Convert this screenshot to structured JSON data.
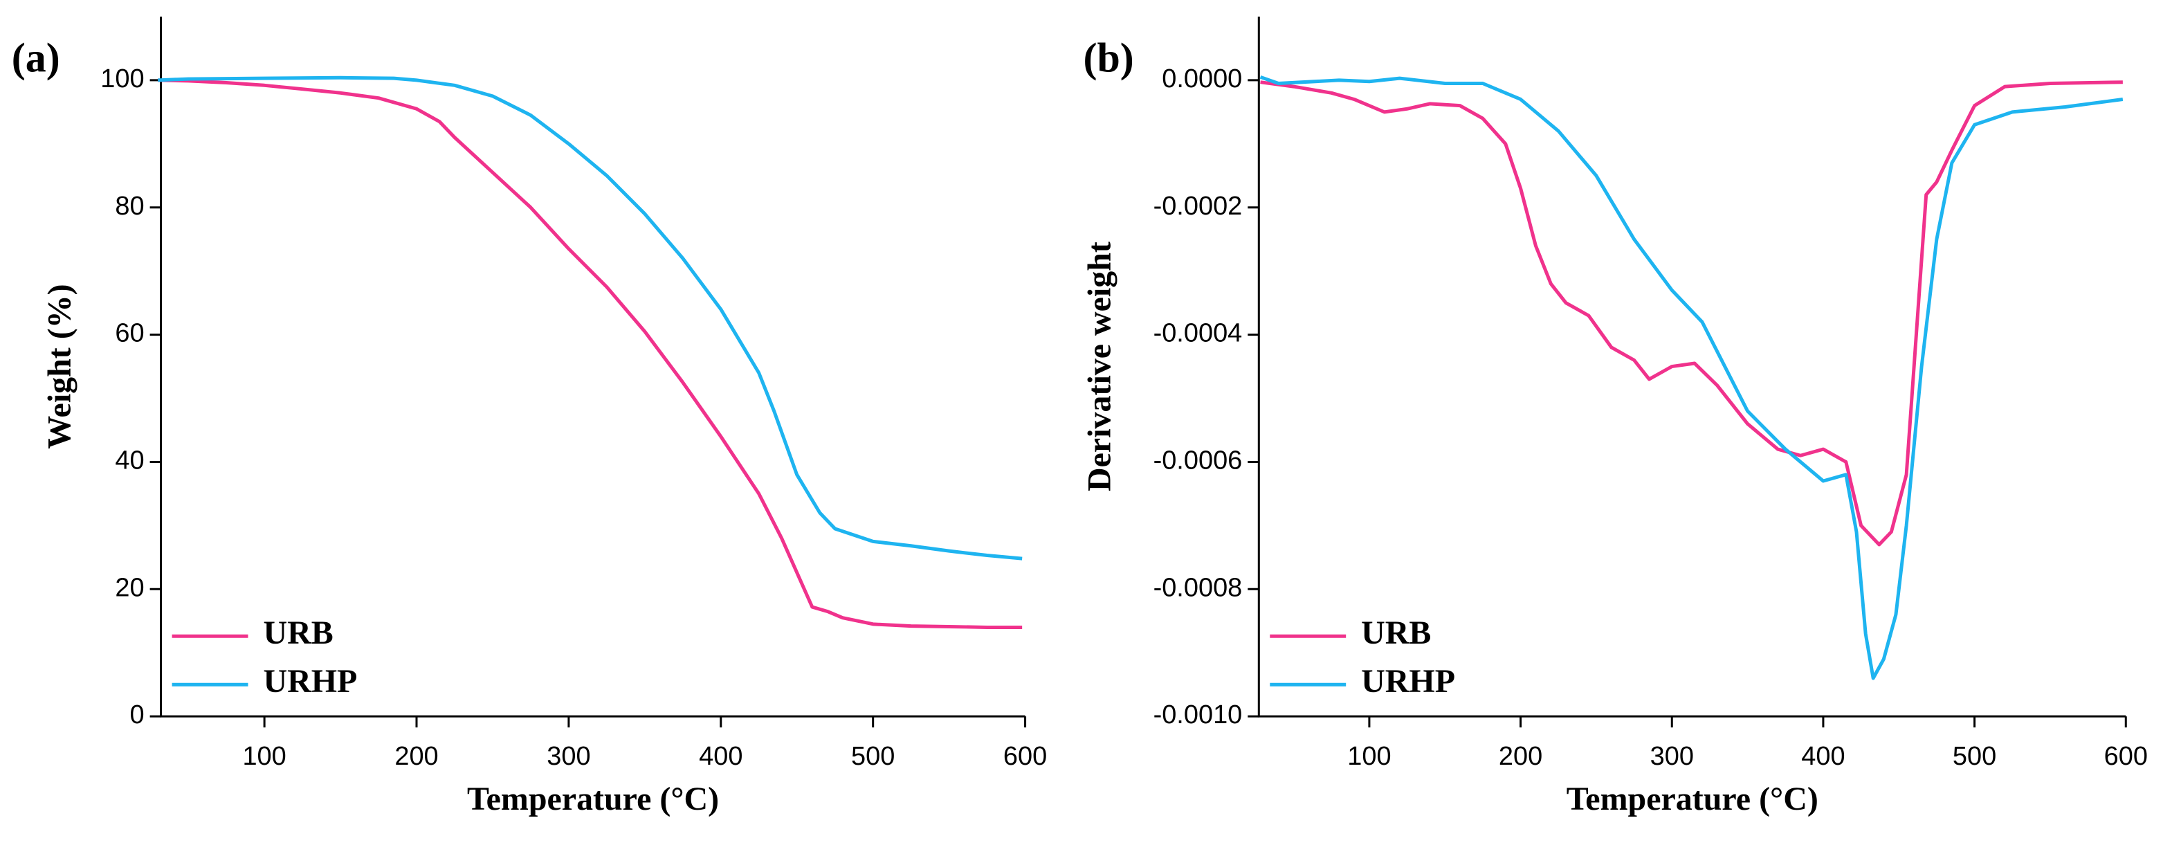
{
  "chart_data": [
    {
      "type": "line",
      "panel": "(a)",
      "xlabel": "Temperature (°C)",
      "ylabel": "Weight (%)",
      "xlim": [
        32,
        600
      ],
      "ylim": [
        0,
        110
      ],
      "xticks": [
        100,
        200,
        300,
        400,
        500,
        600
      ],
      "yticks": [
        0,
        20,
        40,
        60,
        80,
        100
      ],
      "legend": "lower left",
      "series": [
        {
          "name": "URB",
          "color": "#f0328c",
          "x": [
            30,
            50,
            75,
            100,
            125,
            150,
            175,
            200,
            215,
            225,
            250,
            275,
            300,
            325,
            350,
            375,
            400,
            425,
            440,
            460,
            470,
            480,
            500,
            525,
            550,
            575,
            598
          ],
          "values": [
            100,
            99.9,
            99.6,
            99.2,
            98.6,
            98,
            97.2,
            95.5,
            93.5,
            91,
            85.5,
            80,
            73.5,
            67.5,
            60.5,
            52.5,
            44,
            35,
            28,
            17.2,
            16.5,
            15.5,
            14.5,
            14.2,
            14.1,
            14,
            14
          ]
        },
        {
          "name": "URHP",
          "color": "#1eb4f0",
          "x": [
            30,
            50,
            100,
            150,
            185,
            200,
            225,
            250,
            275,
            300,
            325,
            350,
            375,
            400,
            425,
            435,
            450,
            465,
            475,
            500,
            525,
            550,
            575,
            598
          ],
          "values": [
            100,
            100.2,
            100.3,
            100.4,
            100.3,
            100,
            99.2,
            97.5,
            94.5,
            90,
            85,
            79,
            72,
            64,
            54,
            48,
            38,
            32,
            29.5,
            27.5,
            26.8,
            26,
            25.3,
            24.8
          ]
        }
      ]
    },
    {
      "type": "line",
      "panel": "(b)",
      "xlabel": "Temperature (°C)",
      "ylabel": "Derivative weight",
      "xlim": [
        27,
        600
      ],
      "ylim": [
        -0.001,
        0.0001
      ],
      "xticks": [
        100,
        200,
        300,
        400,
        500,
        600
      ],
      "yticks": [
        {
          "value": -0.001,
          "label": "-0.0010"
        },
        {
          "value": -0.0008,
          "label": "-0.0008"
        },
        {
          "value": -0.0006,
          "label": "-0.0006"
        },
        {
          "value": -0.0004,
          "label": "-0.0004"
        },
        {
          "value": -0.0002,
          "label": "-0.0002"
        },
        {
          "value": 0,
          "label": "0.0000"
        }
      ],
      "legend": "lower left",
      "series": [
        {
          "name": "URB",
          "color": "#f0328c",
          "x": [
            28,
            50,
            75,
            90,
            110,
            125,
            140,
            160,
            175,
            190,
            200,
            210,
            220,
            230,
            245,
            260,
            275,
            285,
            300,
            315,
            330,
            350,
            370,
            385,
            400,
            415,
            425,
            437,
            445,
            455,
            468,
            475,
            485,
            500,
            520,
            550,
            598
          ],
          "values": [
            -3e-06,
            -1e-05,
            -2e-05,
            -3e-05,
            -5e-05,
            -4.5e-05,
            -3.7e-05,
            -4e-05,
            -6e-05,
            -0.0001,
            -0.00017,
            -0.00026,
            -0.00032,
            -0.00035,
            -0.00037,
            -0.00042,
            -0.00044,
            -0.00047,
            -0.00045,
            -0.000445,
            -0.00048,
            -0.00054,
            -0.00058,
            -0.00059,
            -0.00058,
            -0.0006,
            -0.0007,
            -0.00073,
            -0.00071,
            -0.00062,
            -0.00018,
            -0.00016,
            -0.00011,
            -4e-05,
            -1e-05,
            -5e-06,
            -3e-06
          ]
        },
        {
          "name": "URHP",
          "color": "#1eb4f0",
          "x": [
            28,
            40,
            80,
            100,
            120,
            150,
            175,
            200,
            225,
            250,
            275,
            300,
            320,
            350,
            375,
            400,
            415,
            422,
            428,
            433,
            440,
            448,
            455,
            465,
            475,
            485,
            500,
            525,
            560,
            598
          ],
          "values": [
            5e-06,
            -5e-06,
            0,
            -2e-06,
            3e-06,
            -5e-06,
            -5e-06,
            -3e-05,
            -8e-05,
            -0.00015,
            -0.00025,
            -0.00033,
            -0.00038,
            -0.00052,
            -0.00058,
            -0.00063,
            -0.00062,
            -0.00071,
            -0.00087,
            -0.00094,
            -0.00091,
            -0.00084,
            -0.0007,
            -0.00045,
            -0.00025,
            -0.00013,
            -7e-05,
            -5e-05,
            -4.2e-05,
            -3e-05
          ]
        }
      ]
    }
  ]
}
